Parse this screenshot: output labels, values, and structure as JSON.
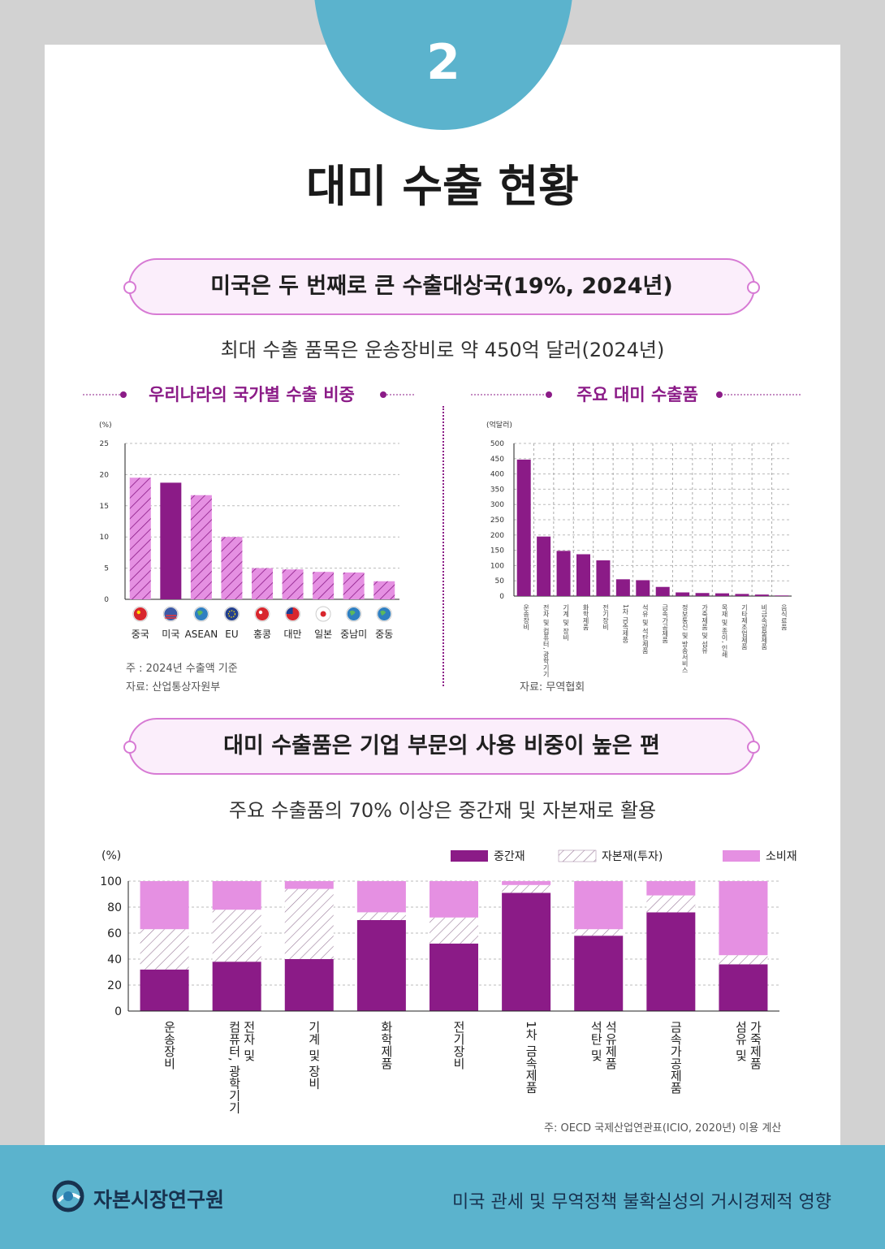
{
  "badge": {
    "number": "2"
  },
  "title": "대미 수출 현황",
  "section1": {
    "pill": "미국은 두 번째로 큰 수출대상국(19%, 2024년)",
    "subtitle": "최대 수출 품목은 운송장비로 약 450억 달러(2024년)"
  },
  "chart1": {
    "heading": "우리나라의 국가별 수출 비중",
    "note": "주    : 2024년 수출액 기준",
    "source": "자료: 산업통상자원부"
  },
  "chart2": {
    "heading": "주요 대미 수출품",
    "source": "자료: 무역협회"
  },
  "section2": {
    "pill": "대미 수출품은 기업 부문의 사용 비중이 높은 편",
    "subtitle": "주요 수출품의 70% 이상은 중간재 및 자본재로 활용"
  },
  "chart3": {
    "note": "주: OECD 국제산업연관표(ICIO, 2020년) 이용 계산"
  },
  "footer": {
    "org": "자본시장연구원",
    "report": "미국 관세 및 무역정책 불확실성의 거시경제적 영향"
  },
  "colors": {
    "purple": "#8b1b87",
    "hatch": "#c77cc8",
    "pink": "#e590e2",
    "blue": "#5bb3cd"
  },
  "chart_data": [
    {
      "type": "bar",
      "title": "우리나라의 국가별 수출 비중",
      "ylabel": "(%)",
      "ylim": [
        0,
        25
      ],
      "yticks": [
        0,
        5,
        10,
        15,
        20,
        25
      ],
      "categories": [
        "중국",
        "미국",
        "ASEAN",
        "EU",
        "홍콩",
        "대만",
        "일본",
        "중남미",
        "중동"
      ],
      "flags": [
        "china-flag-icon",
        "usa-flag-icon",
        "globe-icon",
        "eu-flag-icon",
        "hongkong-flag-icon",
        "taiwan-flag-icon",
        "japan-flag-icon",
        "globe-icon",
        "globe-icon"
      ],
      "values": [
        19.5,
        18.7,
        16.7,
        10.0,
        5.0,
        4.8,
        4.4,
        4.3,
        2.9
      ],
      "highlight": "미국"
    },
    {
      "type": "bar",
      "title": "주요 대미 수출품",
      "ylabel": "(억달러)",
      "ylim": [
        0,
        500
      ],
      "yticks": [
        0,
        50,
        100,
        150,
        200,
        250,
        300,
        350,
        400,
        450,
        500
      ],
      "categories": [
        "운송장비",
        "전자 및 컴퓨터, 광학기기",
        "기계 및 장비",
        "화학제품",
        "전기장비",
        "1차 금속제품",
        "석유 및 석탄제품",
        "금속가공제품",
        "정보통신 및 방송서비스",
        "가죽제품 및 섬유",
        "목재 및 종이, 인쇄",
        "기타제조업제품",
        "비금속광물제품",
        "음식료품"
      ],
      "values": [
        447,
        195,
        148,
        137,
        117,
        55,
        52,
        30,
        12,
        10,
        9,
        7,
        5,
        2
      ]
    },
    {
      "type": "bar",
      "stacked": true,
      "ylabel": "(%)",
      "ylim": [
        0,
        100
      ],
      "yticks": [
        0,
        20,
        40,
        60,
        80,
        100
      ],
      "categories": [
        "운송장비",
        "전자 및 컴퓨터, 광학기기",
        "기계 및 장비",
        "화학제품",
        "전기장비",
        "1차 금속제품",
        "석유 및 석탄제품",
        "금속가공제품",
        "가죽제품 및 섬유"
      ],
      "labels": [
        [
          "운송장비"
        ],
        [
          "전자 및",
          "컴퓨터, 광학기기"
        ],
        [
          "기계 및 장비"
        ],
        [
          "화학제품"
        ],
        [
          "전기장비"
        ],
        [
          "1차 금속제품"
        ],
        [
          "석유제품",
          "석탄 및"
        ],
        [
          "금속가공제품"
        ],
        [
          "가죽제품",
          "섬유 및"
        ]
      ],
      "series": [
        {
          "name": "중간재",
          "values": [
            32,
            38,
            40,
            70,
            52,
            91,
            58,
            76,
            36
          ]
        },
        {
          "name": "자본재(투자)",
          "values": [
            31,
            40,
            54,
            6,
            20,
            6,
            5,
            13,
            7
          ]
        },
        {
          "name": "소비재",
          "values": [
            37,
            22,
            6,
            24,
            28,
            3,
            37,
            11,
            57
          ]
        }
      ]
    }
  ]
}
